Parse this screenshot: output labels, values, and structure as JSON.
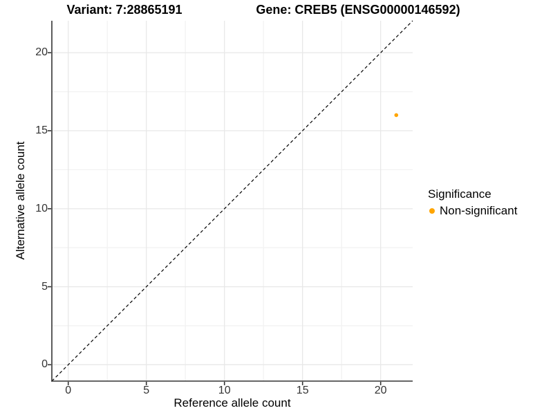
{
  "header": {
    "variant_title": "Variant: 7:28865191",
    "gene_title": "Gene: CREB5 (ENSG00000146592)"
  },
  "chart_data": {
    "type": "scatter",
    "title": "",
    "xlabel": "Reference allele count",
    "ylabel": "Alternative allele count",
    "xlim": [
      -1.05,
      22.05
    ],
    "ylim": [
      -1.05,
      22.05
    ],
    "x_ticks": [
      0,
      5,
      10,
      15,
      20
    ],
    "y_ticks": [
      0,
      5,
      10,
      15,
      20
    ],
    "x_minor_ticks": [
      2.5,
      7.5,
      12.5,
      17.5
    ],
    "y_minor_ticks": [
      2.5,
      7.5,
      12.5,
      17.5
    ],
    "grid": "major and minor, very light gray on white",
    "series": [
      {
        "name": "Non-significant",
        "color": "#FFA500",
        "marker": "circle",
        "points": [
          {
            "x": 21,
            "y": 16
          }
        ]
      }
    ],
    "identity_line": {
      "equation": "y = x",
      "style": "dashed",
      "color": "#000000"
    },
    "legend": {
      "title": "Significance",
      "position": "right",
      "entries": [
        {
          "label": "Non-significant",
          "color": "#FFA500",
          "marker": "circle"
        }
      ]
    }
  },
  "style": {
    "background": "#ffffff",
    "axis_line_color": "#333333",
    "tick_label_color": "#333333",
    "grid_major_color": "#e8e8e8",
    "grid_minor_color": "#f2f2f2",
    "point_color": "#FFA500"
  }
}
